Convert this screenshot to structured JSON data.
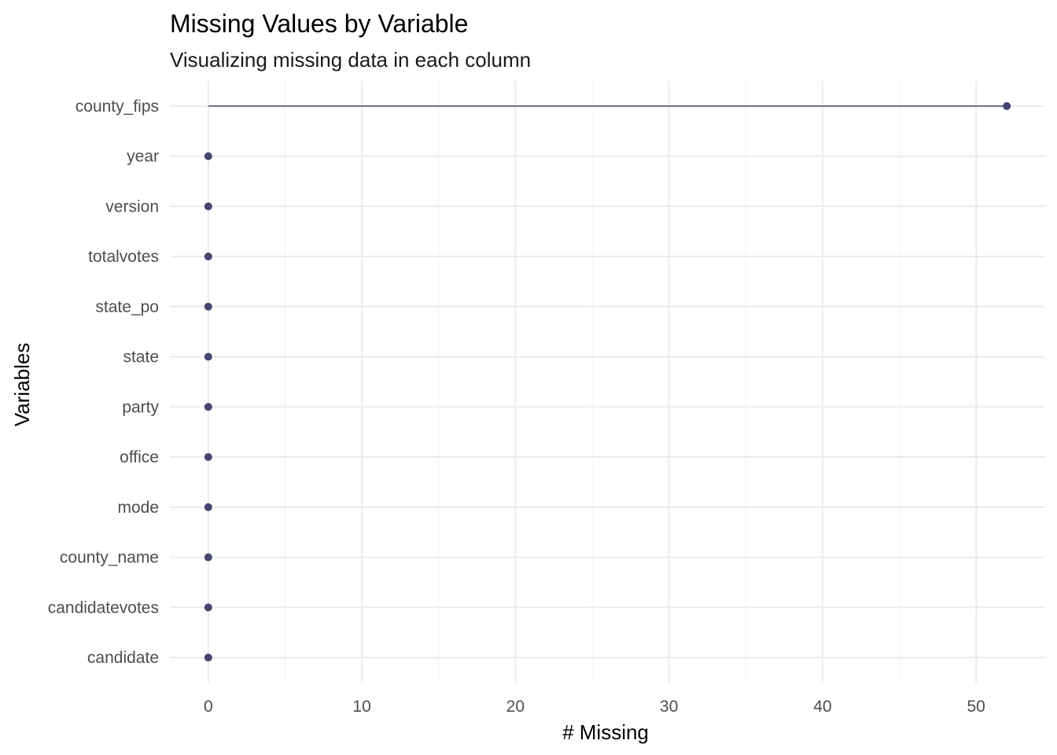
{
  "chart_data": {
    "type": "lollipop",
    "title": "Missing Values by Variable",
    "subtitle": "Visualizing missing data in each column",
    "xlabel": "# Missing",
    "ylabel": "Variables",
    "xlim": [
      -2.5,
      54.5
    ],
    "x_ticks": [
      0,
      10,
      20,
      30,
      40,
      50
    ],
    "x_minor_ticks": [
      5,
      15,
      25,
      35,
      45
    ],
    "grid": true,
    "legend": "none",
    "point_color": "#45466e",
    "categories": [
      "county_fips",
      "year",
      "version",
      "totalvotes",
      "state_po",
      "state",
      "party",
      "office",
      "mode",
      "county_name",
      "candidatevotes",
      "candidate"
    ],
    "values": [
      52,
      0,
      0,
      0,
      0,
      0,
      0,
      0,
      0,
      0,
      0,
      0
    ]
  }
}
